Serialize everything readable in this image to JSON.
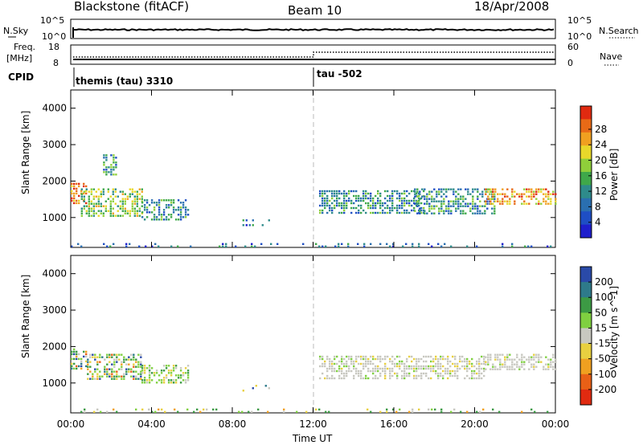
{
  "header": {
    "title": "Blackstone (fitACF)",
    "beam": "Beam 10",
    "date": "18/Apr/2008"
  },
  "nsky_panel": {
    "left_label": "N.Sky",
    "right_label": "N.Search",
    "left_ticks": [
      "10^5",
      "10^0"
    ],
    "right_ticks": [
      "10^5",
      "10^0"
    ],
    "series": [
      {
        "name": "N.Sky",
        "style": "solid"
      },
      {
        "name": "N.Search",
        "style": "dotted"
      }
    ]
  },
  "freq_panel": {
    "left_label_1": "Freq.",
    "left_label_2": "[MHz]",
    "right_label": "Nave",
    "left_ticks": [
      "18",
      "8"
    ],
    "right_ticks": [
      "60",
      "0"
    ],
    "series": [
      {
        "name": "Freq.",
        "style": "solid",
        "value_mhz": 10
      },
      {
        "name": "Nave",
        "style": "dotted",
        "values": [
          [
            0,
            12,
            15
          ],
          [
            12,
            24,
            30
          ]
        ]
      }
    ]
  },
  "cpid_panel": {
    "label": "CPID",
    "segments": [
      {
        "text": "themis (tau) 3310",
        "start_hour": 0
      },
      {
        "text": "tau -502",
        "start_hour": 12
      }
    ]
  },
  "chart_data": [
    {
      "type": "heatmap",
      "quantity": "Power",
      "ylabel": "Slant Range [km]",
      "ylim": [
        180,
        4500
      ],
      "yticks": [
        1000,
        2000,
        3000,
        4000
      ],
      "xlim": [
        0,
        24
      ],
      "colorbar": {
        "label": "Power [dB]",
        "ticks": [
          "4",
          "8",
          "12",
          "16",
          "20",
          "24",
          "28"
        ],
        "colors": [
          "#1e1ecc",
          "#1e4ec4",
          "#2a6fb0",
          "#2e8b8b",
          "#3fa84a",
          "#8fcf3a",
          "#e8d82a",
          "#f0a020",
          "#e86a16",
          "#e02a10"
        ]
      },
      "echo_regions": [
        {
          "t_start": 0.0,
          "t_end": 0.8,
          "r_low": 1400,
          "r_high": 1950,
          "intensity": 26
        },
        {
          "t_start": 0.5,
          "t_end": 3.5,
          "r_low": 1050,
          "r_high": 1800,
          "intensity": 17
        },
        {
          "t_start": 1.6,
          "t_end": 2.3,
          "r_low": 2200,
          "r_high": 2800,
          "intensity": 8
        },
        {
          "t_start": 3.5,
          "t_end": 5.8,
          "r_low": 950,
          "r_high": 1500,
          "intensity": 10
        },
        {
          "t_start": 8.5,
          "t_end": 10.2,
          "r_low": 800,
          "r_high": 950,
          "intensity": 5
        },
        {
          "t_start": 12.3,
          "t_end": 17.5,
          "r_low": 1100,
          "r_high": 1750,
          "intensity": 9
        },
        {
          "t_start": 17.0,
          "t_end": 21.0,
          "r_low": 1100,
          "r_high": 1800,
          "intensity": 8
        },
        {
          "t_start": 20.5,
          "t_end": 24.0,
          "r_low": 1350,
          "r_high": 1800,
          "intensity": 22
        },
        {
          "t_start": 0.0,
          "t_end": 24.0,
          "r_low": 180,
          "r_high": 300,
          "intensity": 6
        }
      ]
    },
    {
      "type": "heatmap",
      "quantity": "Velocity",
      "ylabel": "Slant Range [km]",
      "ylim": [
        180,
        4500
      ],
      "yticks": [
        1000,
        2000,
        3000,
        4000
      ],
      "xlim": [
        0,
        24
      ],
      "xlabel": "Time UT",
      "xticks": [
        "00:00",
        "04:00",
        "08:00",
        "12:00",
        "16:00",
        "20:00",
        "00:00"
      ],
      "colorbar": {
        "label": "Velocity [m s^-1]",
        "ticks": [
          "200",
          "100",
          "50",
          "15",
          "-15",
          "-50",
          "-100",
          "-200"
        ],
        "colors": [
          "#2a4aa8",
          "#2e7a8a",
          "#3c9a44",
          "#7fd040",
          "#c8c8c0",
          "#e8d040",
          "#f0a020",
          "#e86016",
          "#e02a10"
        ]
      },
      "echo_regions": [
        {
          "t_start": 0.0,
          "t_end": 0.8,
          "r_low": 1400,
          "r_high": 1950,
          "class": "mixed"
        },
        {
          "t_start": 0.8,
          "t_end": 3.5,
          "r_low": 1100,
          "r_high": 1800,
          "class": "mixed"
        },
        {
          "t_start": 3.5,
          "t_end": 5.8,
          "r_low": 1000,
          "r_high": 1500,
          "class": "positive-small"
        },
        {
          "t_start": 8.5,
          "t_end": 10.2,
          "r_low": 800,
          "r_high": 950,
          "class": "mixed"
        },
        {
          "t_start": 12.3,
          "t_end": 20.5,
          "r_low": 1100,
          "r_high": 1750,
          "class": "ground-scatter"
        },
        {
          "t_start": 20.5,
          "t_end": 24.0,
          "r_low": 1400,
          "r_high": 1800,
          "class": "ground-scatter"
        },
        {
          "t_start": 0.0,
          "t_end": 24.0,
          "r_low": 180,
          "r_high": 300,
          "class": "mixed-sparse"
        }
      ]
    }
  ]
}
